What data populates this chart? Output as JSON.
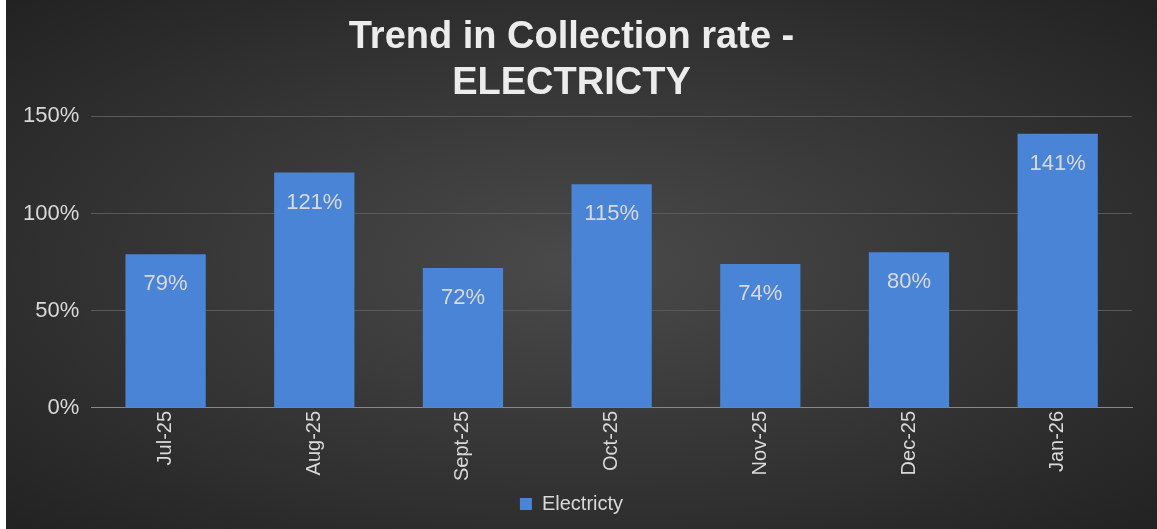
{
  "chart_data": {
    "type": "bar",
    "title": "Trend in Collection rate -\nELECTRICTY",
    "categories": [
      "Jul-25",
      "Aug-25",
      "Sept-25",
      "Oct-25",
      "Nov-25",
      "Dec-25",
      "Jan-26"
    ],
    "series": [
      {
        "name": "Electricty",
        "color": "#4a84d6",
        "values": [
          79,
          121,
          72,
          115,
          74,
          80,
          141
        ]
      }
    ],
    "value_labels": [
      "79%",
      "121%",
      "72%",
      "115%",
      "74%",
      "80%",
      "141%"
    ],
    "ylim": [
      0,
      150
    ],
    "yticks": [
      {
        "value": 0,
        "label": "0%"
      },
      {
        "value": 50,
        "label": "50%"
      },
      {
        "value": 100,
        "label": "100%"
      },
      {
        "value": 150,
        "label": "150%"
      }
    ],
    "grid": "y",
    "legend": "bottom"
  }
}
